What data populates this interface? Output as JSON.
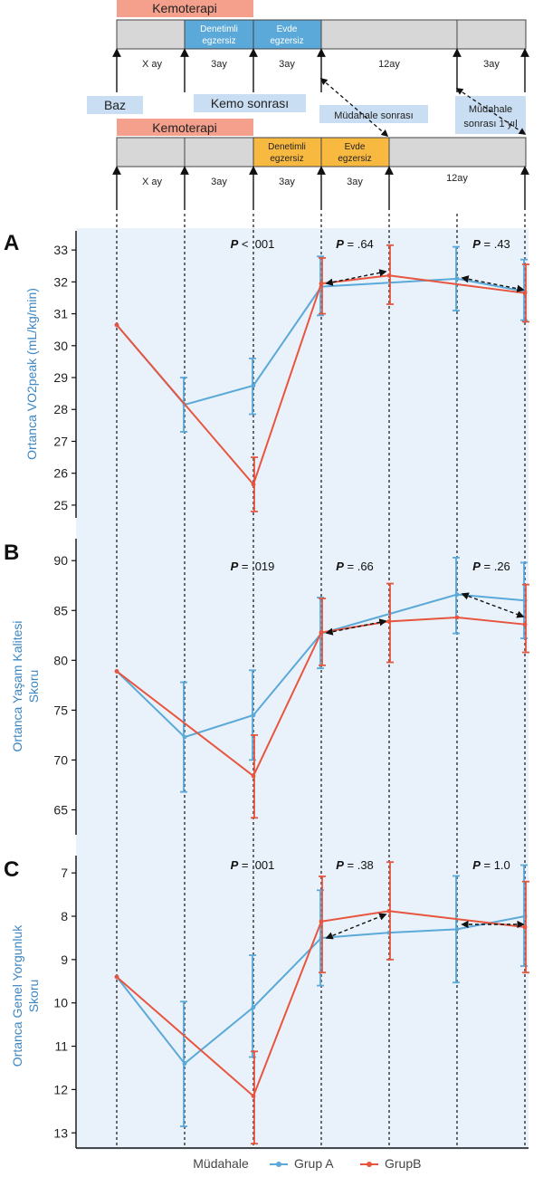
{
  "timeline": {
    "group_a": {
      "phases": [
        "Kemoterapi",
        "Denetimli egzersiz",
        "Evde egzersiz",
        "",
        ""
      ],
      "durations": [
        "X ay",
        "3ay",
        "3ay",
        "12ay",
        "3ay"
      ]
    },
    "group_b": {
      "phases": [
        "Kemoterapi",
        "",
        "Denetimli egzersiz",
        "Evde egzersiz",
        ""
      ],
      "durations": [
        "X ay",
        "3ay",
        "3ay",
        "3ay",
        "12ay"
      ]
    },
    "timepoint_labels": [
      "Baz",
      "Kemo sonrası",
      "Müdahale sonrası",
      "Müdahale sonrası 1 yıl"
    ]
  },
  "colors": {
    "group_a": "#5aa9d8",
    "group_b": "#e8553f",
    "bg": "#e9f2fa",
    "phase_gray": "#d7d7d7",
    "phase_blue": "#5aa9d8",
    "phase_orange": "#f8b940",
    "chemo": "#f4a08c"
  },
  "legend": {
    "title": "Müdahale",
    "a": "Grup A",
    "b": "GrupB"
  },
  "chart_data": [
    {
      "type": "line",
      "panel": "A",
      "ylabel": "Ortanca VO2peak (mL/kg/min)",
      "ylim": [
        24.6,
        33.6
      ],
      "yticks": [
        25,
        26,
        27,
        28,
        29,
        30,
        31,
        32,
        33
      ],
      "reverse": false,
      "pvalues": [
        "P < .001",
        "P = .64",
        "P = .43"
      ],
      "series": [
        {
          "name": "Grup A",
          "points": [
            {
              "t": 0,
              "y": 30.65
            },
            {
              "t": 1,
              "y": 28.15,
              "lo": 27.3,
              "hi": 29.0
            },
            {
              "t": 2,
              "y": 28.75,
              "lo": 27.85,
              "hi": 29.6
            },
            {
              "t": 3,
              "y": 31.85,
              "lo": 30.95,
              "hi": 32.8
            },
            {
              "t": 5,
              "y": 32.1,
              "lo": 31.1,
              "hi": 33.1
            },
            {
              "t": 6,
              "y": 31.7,
              "lo": 30.8,
              "hi": 32.7
            }
          ]
        },
        {
          "name": "GrupB",
          "points": [
            {
              "t": 0,
              "y": 30.65
            },
            {
              "t": 2,
              "y": 25.65,
              "lo": 24.8,
              "hi": 26.5
            },
            {
              "t": 3,
              "y": 31.95,
              "lo": 31.0,
              "hi": 32.75
            },
            {
              "t": 4,
              "y": 32.2,
              "lo": 31.3,
              "hi": 33.15
            },
            {
              "t": 6,
              "y": 31.65,
              "lo": 30.75,
              "hi": 32.55
            }
          ]
        }
      ]
    },
    {
      "type": "line",
      "panel": "B",
      "ylabel": "Ortanca Yaşam Kalitesi Skoru",
      "ylim": [
        62.5,
        92.2
      ],
      "yticks": [
        65,
        70,
        75,
        80,
        85,
        90
      ],
      "reverse": false,
      "pvalues": [
        "P = .019",
        "P = .66",
        "P = .26"
      ],
      "series": [
        {
          "name": "Grup A",
          "points": [
            {
              "t": 0,
              "y": 78.9
            },
            {
              "t": 1,
              "y": 72.3,
              "lo": 66.8,
              "hi": 77.8
            },
            {
              "t": 2,
              "y": 74.5,
              "lo": 70.0,
              "hi": 79.0
            },
            {
              "t": 3,
              "y": 82.7,
              "lo": 79.2,
              "hi": 86.3
            },
            {
              "t": 5,
              "y": 86.6,
              "lo": 82.7,
              "hi": 90.3
            },
            {
              "t": 6,
              "y": 86.0,
              "lo": 82.2,
              "hi": 89.8
            }
          ]
        },
        {
          "name": "GrupB",
          "points": [
            {
              "t": 0,
              "y": 78.9
            },
            {
              "t": 2,
              "y": 68.4,
              "lo": 64.2,
              "hi": 72.5
            },
            {
              "t": 3,
              "y": 82.8,
              "lo": 79.5,
              "hi": 86.2
            },
            {
              "t": 4,
              "y": 83.9,
              "lo": 79.8,
              "hi": 87.7
            },
            {
              "t": 5,
              "y": 84.3
            },
            {
              "t": 6,
              "y": 83.6,
              "lo": 80.8,
              "hi": 87.6
            }
          ]
        }
      ]
    },
    {
      "type": "line",
      "panel": "C",
      "ylabel": "Ortanca Genel Yorgunluk Skoru",
      "ylim": [
        6.6,
        13.35
      ],
      "yticks": [
        7,
        8,
        9,
        10,
        11,
        12,
        13
      ],
      "reverse": true,
      "pvalues": [
        "P = .001",
        "P = .38",
        "P = 1.0"
      ],
      "series": [
        {
          "name": "Grup A",
          "points": [
            {
              "t": 0,
              "y": 9.4
            },
            {
              "t": 1,
              "y": 11.4,
              "lo": 9.97,
              "hi": 12.85
            },
            {
              "t": 2,
              "y": 10.1,
              "lo": 8.9,
              "hi": 11.25
            },
            {
              "t": 3,
              "y": 8.5,
              "lo": 7.4,
              "hi": 9.6
            },
            {
              "t": 4,
              "y": 8.38
            },
            {
              "t": 5,
              "y": 8.3,
              "lo": 7.07,
              "hi": 9.53
            },
            {
              "t": 6,
              "y": 8.0,
              "lo": 6.82,
              "hi": 9.15
            }
          ]
        },
        {
          "name": "GrupB",
          "points": [
            {
              "t": 0,
              "y": 9.4
            },
            {
              "t": 2,
              "y": 12.15,
              "lo": 11.12,
              "hi": 13.25
            },
            {
              "t": 3,
              "y": 8.12,
              "lo": 7.08,
              "hi": 9.3
            },
            {
              "t": 4,
              "y": 7.88,
              "lo": 6.75,
              "hi": 9.0
            },
            {
              "t": 6,
              "y": 8.25,
              "lo": 7.2,
              "hi": 9.3
            }
          ]
        }
      ]
    }
  ]
}
